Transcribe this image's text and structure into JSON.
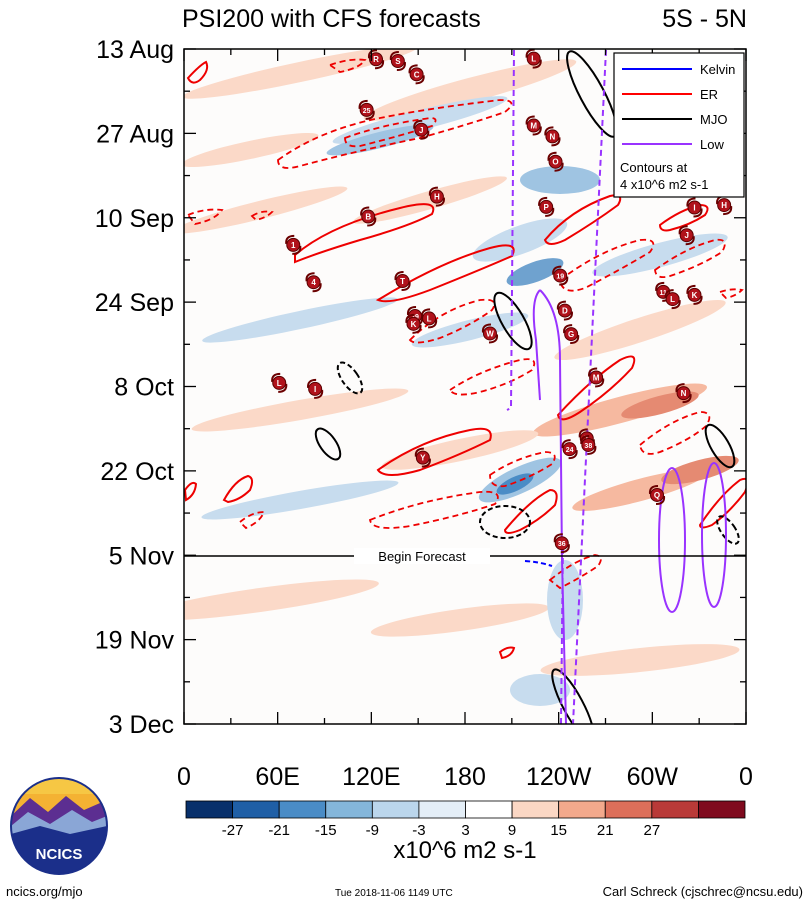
{
  "chart_data": {
    "type": "heatmap",
    "title": "PSI200 with CFS forecasts",
    "region": "5S - 5N",
    "time_axis": {
      "labels": [
        "13 Aug",
        "27 Aug",
        "10 Sep",
        "24 Sep",
        "8 Oct",
        "22 Oct",
        "5 Nov",
        "19 Nov",
        "3 Dec"
      ],
      "range_days": [
        0,
        112
      ],
      "major_interval_days": 14,
      "minor_interval_days": 7
    },
    "lon_axis": {
      "labels": [
        "0",
        "60E",
        "120E",
        "180",
        "120W",
        "60W",
        "0"
      ],
      "range_deg": [
        0,
        360
      ]
    },
    "forecast_start": {
      "label": "Begin Forecast",
      "day": 84
    },
    "colorbar": {
      "levels": [
        -27,
        -21,
        -15,
        -9,
        -3,
        3,
        9,
        15,
        21,
        27
      ],
      "tick_labels": [
        "-27",
        "-21",
        "-15",
        "-9",
        "-3",
        "3",
        "9",
        "15",
        "21",
        "27"
      ],
      "colors": [
        "#08306b",
        "#1f5fa6",
        "#4a8cc6",
        "#84b6da",
        "#bbd6ec",
        "#e4eef7",
        "#ffffff",
        "#fbd7c4",
        "#f3a98c",
        "#dd6f5a",
        "#b93a38",
        "#7f0a1e"
      ],
      "units": "x10^6 m2 s-1"
    },
    "legend": {
      "entries": [
        {
          "label": "Kelvin",
          "color": "#0000ff"
        },
        {
          "label": "ER",
          "color": "#ff0000"
        },
        {
          "label": "MJO",
          "color": "#000000"
        },
        {
          "label": "Low",
          "color": "#9933ff"
        }
      ],
      "note_line1": "Contours at",
      "note_line2": "4 x10^6 m2 s-1",
      "placement": "top-right"
    },
    "storms": [
      {
        "label": "R",
        "lon": 123,
        "day": 1.7
      },
      {
        "label": "S",
        "lon": 137,
        "day": 2.0
      },
      {
        "label": "C",
        "lon": 149,
        "day": 4.2
      },
      {
        "label": "L",
        "lon": 224,
        "day": 1.6
      },
      {
        "label": "25",
        "lon": 117,
        "day": 10.1
      },
      {
        "label": "J",
        "lon": 152,
        "day": 13.4
      },
      {
        "label": "M",
        "lon": 224,
        "day": 12.7
      },
      {
        "label": "N",
        "lon": 236,
        "day": 14.5
      },
      {
        "label": "O",
        "lon": 238,
        "day": 18.7
      },
      {
        "label": "H",
        "lon": 162,
        "day": 24.5
      },
      {
        "label": "P",
        "lon": 232,
        "day": 26.2
      },
      {
        "label": "B",
        "lon": 118,
        "day": 27.8
      },
      {
        "label": "I",
        "lon": 327,
        "day": 26.3
      },
      {
        "label": "H",
        "lon": 346,
        "day": 25.9
      },
      {
        "label": "J",
        "lon": 322,
        "day": 30.9
      },
      {
        "label": "1",
        "lon": 70,
        "day": 32.5
      },
      {
        "label": "4",
        "lon": 83,
        "day": 38.7
      },
      {
        "label": "T",
        "lon": 140,
        "day": 38.5
      },
      {
        "label": "19",
        "lon": 241,
        "day": 37.6
      },
      {
        "label": "11",
        "lon": 307,
        "day": 40.3
      },
      {
        "label": "L",
        "lon": 313,
        "day": 41.5
      },
      {
        "label": "K",
        "lon": 327,
        "day": 40.8
      },
      {
        "label": "D",
        "lon": 244,
        "day": 43.4
      },
      {
        "label": "29",
        "lon": 148,
        "day": 44.3
      },
      {
        "label": "K",
        "lon": 147,
        "day": 45.6
      },
      {
        "label": "L",
        "lon": 157,
        "day": 44.7
      },
      {
        "label": "W",
        "lon": 196,
        "day": 47.2
      },
      {
        "label": "G",
        "lon": 248,
        "day": 47.3
      },
      {
        "label": "M",
        "lon": 264,
        "day": 54.5
      },
      {
        "label": "L",
        "lon": 61,
        "day": 55.4
      },
      {
        "label": "I",
        "lon": 84,
        "day": 56.4
      },
      {
        "label": "N",
        "lon": 320,
        "day": 57.1
      },
      {
        "label": "T",
        "lon": 258,
        "day": 64.6
      },
      {
        "label": "24",
        "lon": 247,
        "day": 66.4
      },
      {
        "label": "38",
        "lon": 259,
        "day": 65.7
      },
      {
        "label": "Y",
        "lon": 153,
        "day": 67.8
      },
      {
        "label": "Q",
        "lon": 303,
        "day": 74.0
      },
      {
        "label": "36",
        "lon": 242,
        "day": 82.0
      }
    ]
  },
  "footer": {
    "left": "ncics.org/mjo",
    "center": "Tue 2018-11-06 1149 UTC",
    "right": "Carl Schreck (cjschrec@ncsu.edu)"
  },
  "logo": {
    "text": "NCICS"
  }
}
